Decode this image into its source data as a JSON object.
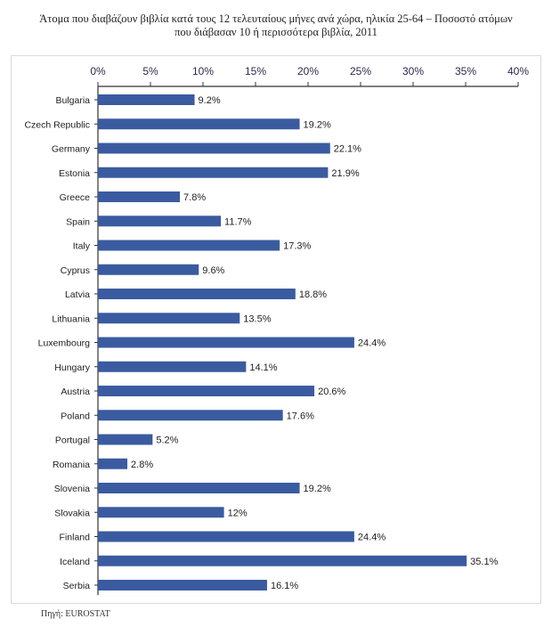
{
  "title_line1": "Άτομα που διαβάζουν βιβλία κατά τους 12 τελευταίους μήνες ανά χώρα, ηλικία 25-64 – Ποσοστό ατόμων",
  "title_line2": "που διάβασαν 10 ή περισσότερα βιβλία, 2011",
  "source": "Πηγή: EUROSTAT",
  "colors": {
    "bar": "#3a5ba0",
    "axis": "#333333",
    "tick_label": "#2a2a4a"
  },
  "chart_data": {
    "type": "bar",
    "orientation": "horizontal",
    "title": "Άτομα που διαβάζουν βιβλία κατά τους 12 τελευταίους μήνες ανά χώρα, ηλικία 25-64 – Ποσοστό ατόμων που διάβασαν 10 ή περισσότερα βιβλία, 2011",
    "xlim": [
      0,
      40
    ],
    "xticks": [
      0,
      5,
      10,
      15,
      20,
      25,
      30,
      35,
      40
    ],
    "xtick_labels": [
      "0%",
      "5%",
      "10%",
      "15%",
      "20%",
      "25%",
      "30%",
      "35%",
      "40%"
    ],
    "x_axis_position": "top",
    "categories": [
      "Bulgaria",
      "Czech Republic",
      "Germany",
      "Estonia",
      "Greece",
      "Spain",
      "Italy",
      "Cyprus",
      "Latvia",
      "Lithuania",
      "Luxembourg",
      "Hungary",
      "Austria",
      "Poland",
      "Portugal",
      "Romania",
      "Slovenia",
      "Slovakia",
      "Finland",
      "Iceland",
      "Serbia"
    ],
    "values": [
      9.2,
      19.2,
      22.1,
      21.9,
      7.8,
      11.7,
      17.3,
      9.6,
      18.8,
      13.5,
      24.4,
      14.1,
      20.6,
      17.6,
      5.2,
      2.8,
      19.2,
      12,
      24.4,
      35.1,
      16.1
    ],
    "value_labels": [
      "9.2%",
      "19.2%",
      "22.1%",
      "21.9%",
      "7.8%",
      "11.7%",
      "17.3%",
      "9.6%",
      "18.8%",
      "13.5%",
      "24.4%",
      "14.1%",
      "20.6%",
      "17.6%",
      "5.2%",
      "2.8%",
      "19.2%",
      "12%",
      "24.4%",
      "35.1%",
      "16.1%"
    ]
  }
}
